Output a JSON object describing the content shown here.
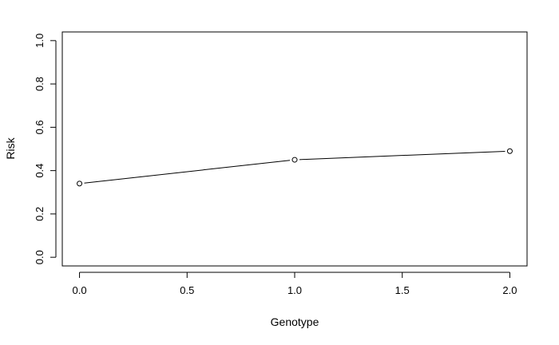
{
  "chart_data": {
    "type": "line",
    "title": "",
    "xlabel": "Genotype",
    "ylabel": "Risk",
    "x": [
      0.0,
      1.0,
      2.0
    ],
    "series": [
      {
        "values": [
          0.34,
          0.45,
          0.49
        ]
      }
    ],
    "xlim": [
      -0.08,
      2.08
    ],
    "ylim": [
      -0.04,
      1.04
    ],
    "x_ticks": [
      0.0,
      0.5,
      1.0,
      1.5,
      2.0
    ],
    "x_tick_labels": [
      "0.0",
      "0.5",
      "1.0",
      "1.5",
      "2.0"
    ],
    "y_ticks": [
      0.0,
      0.2,
      0.4,
      0.6,
      0.8,
      1.0
    ],
    "y_tick_labels": [
      "0.0",
      "0.2",
      "0.4",
      "0.6",
      "0.8",
      "1.0"
    ],
    "marker": "open-circle",
    "grid": false,
    "line_color": "#000000",
    "marker_fill": "#ffffff"
  }
}
